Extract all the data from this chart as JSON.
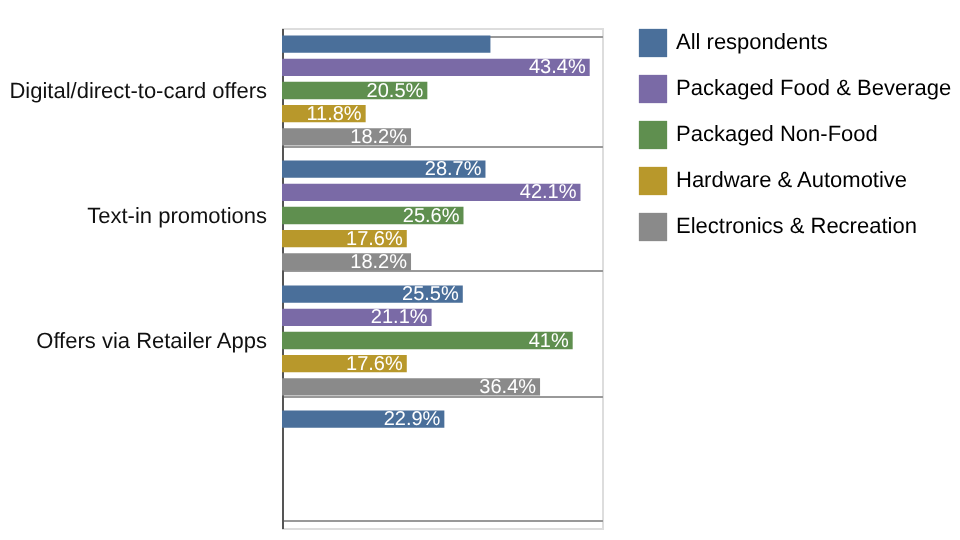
{
  "chart_data": {
    "type": "bar",
    "orientation": "horizontal",
    "categories": [
      "Digital/direct-to-card offers",
      "Text-in promotions",
      "Offers via Retailer Apps",
      null
    ],
    "series": [
      {
        "name": "All respondents",
        "color": "#4a6f9a",
        "values": [
          29.4,
          28.7,
          25.5,
          22.9
        ],
        "value_labels": [
          null,
          "28.7%",
          "25.5%",
          "22.9%"
        ]
      },
      {
        "name": "Packaged Food & Beverage",
        "color": "#7a6aa6",
        "values": [
          43.4,
          42.1,
          21.1,
          null
        ],
        "value_labels": [
          "43.4%",
          "42.1%",
          "21.1%",
          null
        ]
      },
      {
        "name": "Packaged Non-Food",
        "color": "#5f8f4f",
        "values": [
          20.5,
          25.6,
          41,
          null
        ],
        "value_labels": [
          "20.5%",
          "25.6%",
          "41%",
          null
        ]
      },
      {
        "name": "Hardware & Automotive",
        "color": "#b8982b",
        "values": [
          11.8,
          17.6,
          17.6,
          null
        ],
        "value_labels": [
          "11.8%",
          "17.6%",
          "17.6%",
          null
        ]
      },
      {
        "name": "Electronics & Recreation",
        "color": "#8a8a8a",
        "values": [
          18.2,
          18.2,
          36.4,
          null
        ],
        "value_labels": [
          "18.2%",
          "18.2%",
          "36.4%",
          null
        ]
      }
    ],
    "grid": "y",
    "legend": "top right"
  }
}
